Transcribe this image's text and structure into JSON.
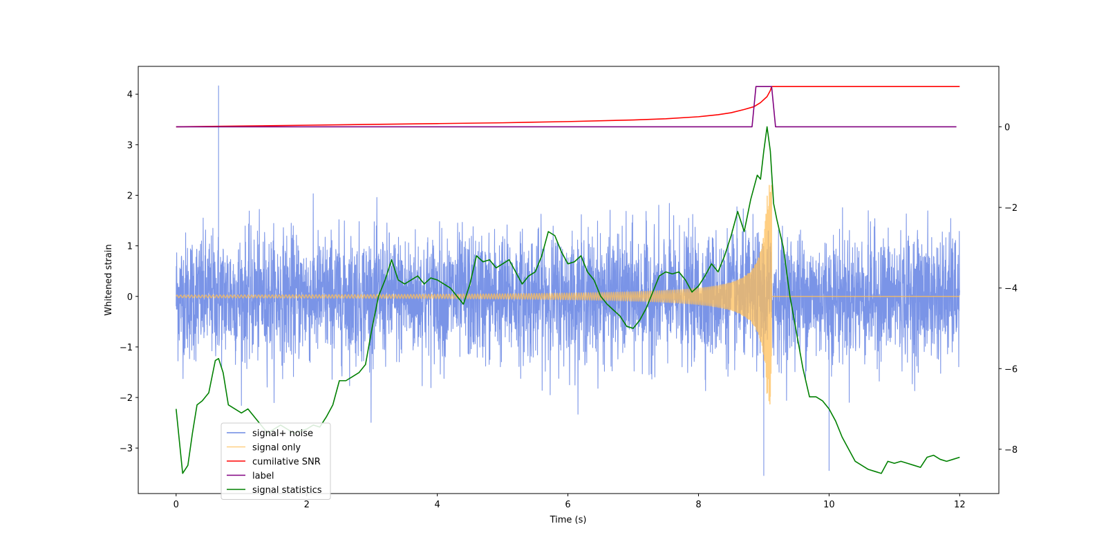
{
  "chart_data": {
    "type": "line",
    "title": "",
    "xlabel": "Time (s)",
    "ylabel": "Whitened strain",
    "ylabel_right": "",
    "xlim": [
      -0.58,
      12.6
    ],
    "ylim": [
      -3.9,
      4.55
    ],
    "ylim_right": [
      -9.1,
      1.5
    ],
    "xticks": [
      0,
      2,
      4,
      6,
      8,
      10,
      12
    ],
    "yticks": [
      -3,
      -2,
      -1,
      0,
      1,
      2,
      3,
      4
    ],
    "yticks_right": [
      -8,
      -6,
      -4,
      -2,
      0
    ],
    "grid": false,
    "legend_position": "lower-left",
    "series": [
      {
        "name": "signal+ noise",
        "color": "#6c88e4",
        "axis": "left",
        "kind": "noise",
        "x_range": [
          0,
          12
        ],
        "typical_amplitude": 1.0,
        "peak_spikes": [
          [
            0.65,
            4.17
          ],
          [
            9.0,
            -3.55
          ],
          [
            10.0,
            -3.45
          ]
        ]
      },
      {
        "name": "signal only",
        "color": "#ffbf59",
        "axis": "left",
        "kind": "chirp",
        "x_range": [
          0,
          12
        ],
        "merger_time": 9.12,
        "peak_amplitude": 2.2
      },
      {
        "name": "cumilative SNR",
        "color": "#ff0000",
        "axis": "right",
        "kind": "curve",
        "x": [
          0,
          1,
          2,
          3,
          4,
          5,
          6,
          7,
          7.5,
          8,
          8.3,
          8.5,
          8.7,
          8.85,
          8.95,
          9.05,
          9.1,
          9.12,
          12
        ],
        "y": [
          0,
          0.02,
          0.04,
          0.06,
          0.08,
          0.1,
          0.13,
          0.17,
          0.2,
          0.25,
          0.3,
          0.35,
          0.43,
          0.5,
          0.6,
          0.75,
          0.9,
          1.0,
          1.0
        ]
      },
      {
        "name": "label",
        "color": "#800080",
        "axis": "right",
        "kind": "curve",
        "x": [
          0,
          8.82,
          8.88,
          9.12,
          9.18,
          11.95
        ],
        "y": [
          0,
          0,
          1,
          1,
          0,
          0
        ]
      },
      {
        "name": "signal statistics",
        "color": "#008000",
        "axis": "right",
        "kind": "curve",
        "x": [
          0,
          0.1,
          0.18,
          0.25,
          0.32,
          0.4,
          0.5,
          0.6,
          0.65,
          0.72,
          0.8,
          0.9,
          1.0,
          1.1,
          1.2,
          1.3,
          1.4,
          1.5,
          1.6,
          1.7,
          1.8,
          1.9,
          2.0,
          2.1,
          2.2,
          2.3,
          2.4,
          2.5,
          2.6,
          2.7,
          2.8,
          2.9,
          3.0,
          3.1,
          3.2,
          3.3,
          3.4,
          3.5,
          3.6,
          3.7,
          3.8,
          3.9,
          4.0,
          4.1,
          4.2,
          4.3,
          4.4,
          4.5,
          4.6,
          4.7,
          4.8,
          4.9,
          5.0,
          5.1,
          5.2,
          5.3,
          5.4,
          5.5,
          5.6,
          5.7,
          5.8,
          5.9,
          6.0,
          6.1,
          6.2,
          6.3,
          6.4,
          6.5,
          6.6,
          6.7,
          6.8,
          6.9,
          7.0,
          7.1,
          7.2,
          7.3,
          7.4,
          7.5,
          7.6,
          7.7,
          7.8,
          7.9,
          8.0,
          8.1,
          8.2,
          8.3,
          8.4,
          8.5,
          8.6,
          8.7,
          8.8,
          8.9,
          8.95,
          9.0,
          9.05,
          9.1,
          9.15,
          9.2,
          9.3,
          9.4,
          9.5,
          9.6,
          9.7,
          9.8,
          9.9,
          10.0,
          10.1,
          10.2,
          10.3,
          10.4,
          10.5,
          10.6,
          10.7,
          10.8,
          10.9,
          11.0,
          11.1,
          11.2,
          11.3,
          11.4,
          11.5,
          11.6,
          11.7,
          11.8,
          11.9,
          12.0
        ],
        "y": [
          -7.0,
          -8.6,
          -8.4,
          -7.6,
          -6.9,
          -6.8,
          -6.6,
          -5.8,
          -5.75,
          -6.1,
          -6.9,
          -7.0,
          -7.1,
          -7.0,
          -7.2,
          -7.4,
          -7.6,
          -7.5,
          -7.4,
          -7.5,
          -7.6,
          -7.55,
          -7.5,
          -7.4,
          -7.45,
          -7.2,
          -6.9,
          -6.3,
          -6.3,
          -6.2,
          -6.1,
          -5.9,
          -5.0,
          -4.2,
          -3.8,
          -3.3,
          -3.8,
          -3.9,
          -3.8,
          -3.7,
          -3.9,
          -3.75,
          -3.8,
          -3.9,
          -4.0,
          -4.2,
          -4.4,
          -3.9,
          -3.2,
          -3.35,
          -3.3,
          -3.5,
          -3.4,
          -3.3,
          -3.6,
          -3.9,
          -3.7,
          -3.6,
          -3.2,
          -2.6,
          -2.7,
          -3.1,
          -3.4,
          -3.35,
          -3.2,
          -3.6,
          -3.8,
          -4.2,
          -4.4,
          -4.55,
          -4.7,
          -4.95,
          -5.0,
          -4.8,
          -4.5,
          -4.1,
          -3.7,
          -3.6,
          -3.65,
          -3.6,
          -3.8,
          -4.1,
          -3.95,
          -3.7,
          -3.4,
          -3.6,
          -3.2,
          -2.7,
          -2.1,
          -2.6,
          -1.8,
          -1.2,
          -1.3,
          -0.6,
          0.0,
          -0.6,
          -1.9,
          -2.3,
          -3.0,
          -4.2,
          -5.1,
          -6.0,
          -6.7,
          -6.7,
          -6.8,
          -7.0,
          -7.3,
          -7.7,
          -8.0,
          -8.3,
          -8.4,
          -8.5,
          -8.55,
          -8.6,
          -8.3,
          -8.35,
          -8.3,
          -8.35,
          -8.4,
          -8.45,
          -8.2,
          -8.15,
          -8.25,
          -8.3,
          -8.25,
          -8.2
        ]
      }
    ]
  }
}
